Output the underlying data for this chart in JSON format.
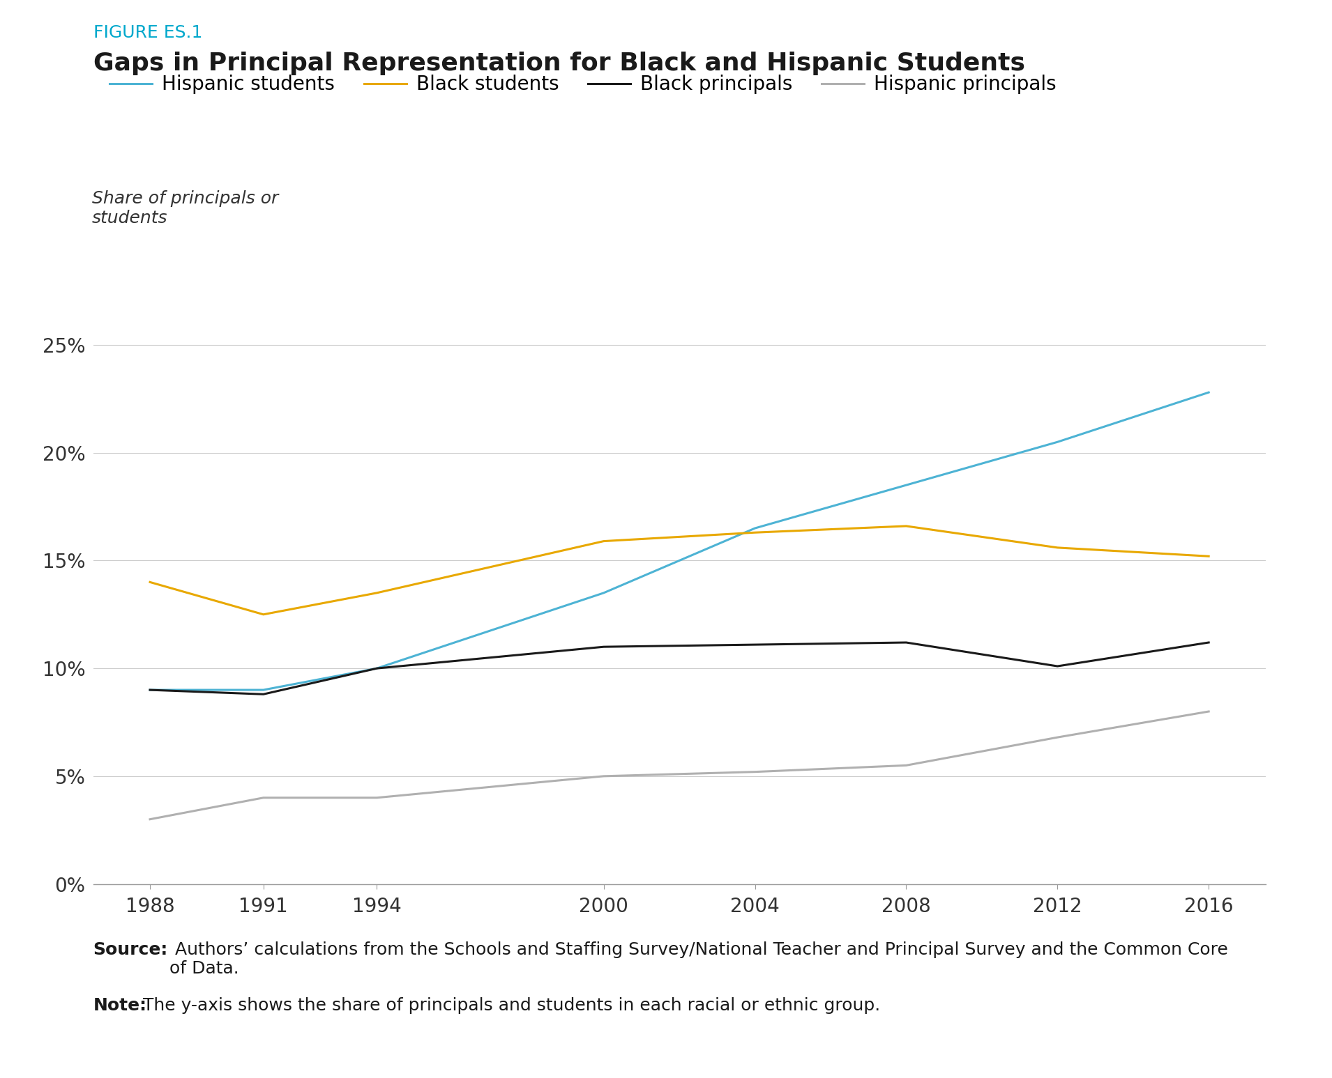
{
  "title_label": "FIGURE ES.1",
  "title": "Gaps in Principal Representation for Black and Hispanic Students",
  "ylabel": "Share of principals or\nstudents",
  "source_bold": "Source:",
  "source_rest": " Authors’ calculations from the Schools and Staffing Survey/National Teacher and Principal Survey and the Common Core\nof Data.",
  "note_bold": "Note:",
  "note_rest": " The y-axis shows the share of principals and students in each racial or ethnic group.",
  "years": [
    1988,
    1991,
    1994,
    2000,
    2004,
    2008,
    2012,
    2016
  ],
  "hispanic_students": [
    0.09,
    0.09,
    0.1,
    0.135,
    0.165,
    0.185,
    0.205,
    0.228
  ],
  "black_students": [
    0.14,
    0.125,
    0.135,
    0.159,
    0.163,
    0.166,
    0.156,
    0.152
  ],
  "black_principals": [
    0.09,
    0.088,
    0.1,
    0.11,
    0.111,
    0.112,
    0.101,
    0.112
  ],
  "hispanic_principals": [
    0.03,
    0.04,
    0.04,
    0.05,
    0.052,
    0.055,
    0.068,
    0.08
  ],
  "colors": {
    "hispanic_students": "#4db3d4",
    "black_students": "#e8a800",
    "black_principals": "#1a1a1a",
    "hispanic_principals": "#b0b0b0"
  },
  "legend_labels": [
    "Hispanic students",
    "Black students",
    "Black principals",
    "Hispanic principals"
  ],
  "ylim": [
    0,
    0.27
  ],
  "yticks": [
    0.0,
    0.05,
    0.1,
    0.15,
    0.2,
    0.25
  ],
  "ytick_labels": [
    "0%",
    "5%",
    "10%",
    "15%",
    "20%",
    "25%"
  ],
  "xticks": [
    1988,
    1991,
    1994,
    2000,
    2004,
    2008,
    2012,
    2016
  ],
  "background_color": "#ffffff",
  "grid_color": "#cccccc",
  "title_label_color": "#00a8cc",
  "line_width": 2.2
}
